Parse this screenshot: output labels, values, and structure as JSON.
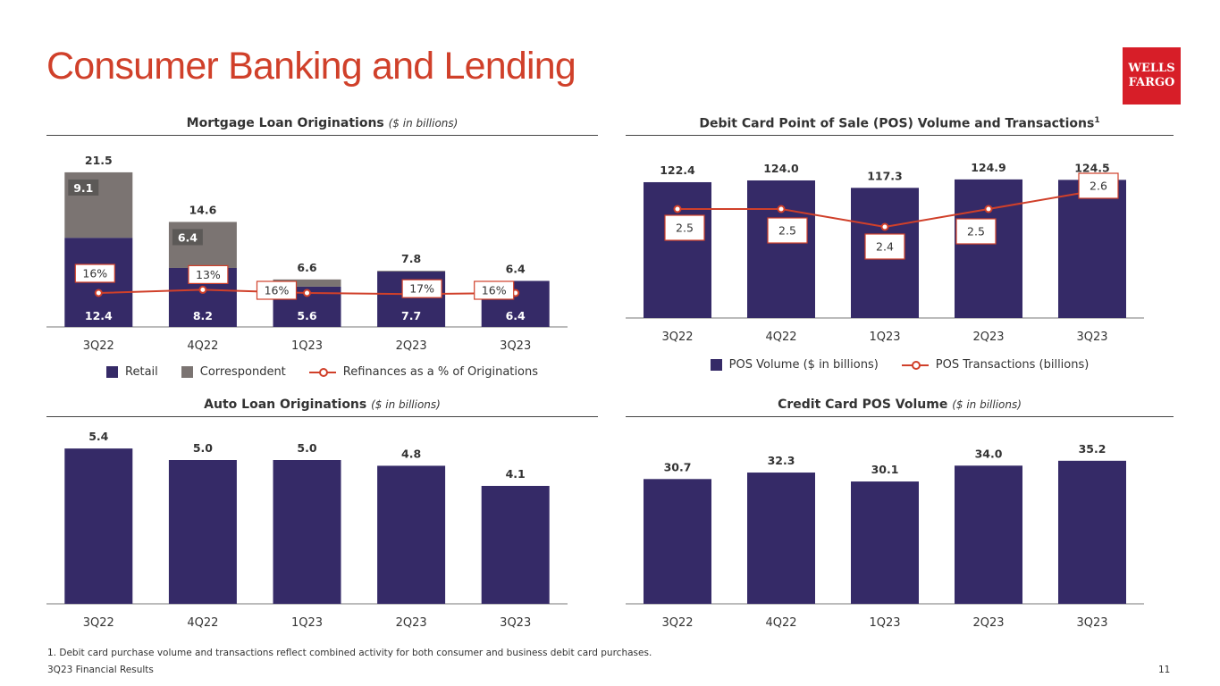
{
  "title": "Consumer Banking and Lending",
  "logo": {
    "line1": "WELLS",
    "line2": "FARGO",
    "color": "#d71e28"
  },
  "colors": {
    "navy": "#352a67",
    "gray": "#7b7472",
    "red": "#d0402a"
  },
  "chart_data": [
    {
      "type": "bar",
      "title": "Mortgage Loan Originations",
      "subtitle": "($ in billions)",
      "categories": [
        "3Q22",
        "4Q22",
        "1Q23",
        "2Q23",
        "3Q23"
      ],
      "series": [
        {
          "name": "Retail",
          "values": [
            12.4,
            8.2,
            5.6,
            7.7,
            6.4
          ],
          "labels": [
            "12.4",
            "8.2",
            "5.6",
            "7.7",
            "6.4"
          ]
        },
        {
          "name": "Correspondent",
          "values": [
            9.1,
            6.4,
            1.0,
            0.1,
            0.0
          ],
          "labels": [
            "9.1",
            "6.4",
            "",
            "",
            ""
          ]
        }
      ],
      "totals": [
        "21.5",
        "14.6",
        "6.6",
        "7.8",
        "6.4"
      ],
      "line": {
        "name": "Refinances as a % of Originations",
        "values": [
          16,
          13,
          16,
          17,
          16
        ],
        "labels": [
          "16%",
          "13%",
          "16%",
          "17%",
          "16%"
        ]
      }
    },
    {
      "type": "bar",
      "title": "Debit Card Point of Sale (POS) Volume and Transactions",
      "footnote_ref": "1",
      "categories": [
        "3Q22",
        "4Q22",
        "1Q23",
        "2Q23",
        "3Q23"
      ],
      "series": [
        {
          "name": "POS Volume ($ in billions)",
          "values": [
            122.4,
            124.0,
            117.3,
            124.9,
            124.5
          ],
          "labels": [
            "122.4",
            "124.0",
            "117.3",
            "124.9",
            "124.5"
          ]
        }
      ],
      "line": {
        "name": "POS Transactions (billions)",
        "values": [
          2.5,
          2.5,
          2.4,
          2.5,
          2.6
        ],
        "labels": [
          "2.5",
          "2.5",
          "2.4",
          "2.5",
          "2.6"
        ]
      }
    },
    {
      "type": "bar",
      "title": "Auto Loan Originations",
      "subtitle": "($ in billions)",
      "categories": [
        "3Q22",
        "4Q22",
        "1Q23",
        "2Q23",
        "3Q23"
      ],
      "series": [
        {
          "name": "",
          "values": [
            5.4,
            5.0,
            5.0,
            4.8,
            4.1
          ],
          "labels": [
            "5.4",
            "5.0",
            "5.0",
            "4.8",
            "4.1"
          ]
        }
      ]
    },
    {
      "type": "bar",
      "title": "Credit Card POS Volume",
      "subtitle": "($ in billions)",
      "categories": [
        "3Q22",
        "4Q22",
        "1Q23",
        "2Q23",
        "3Q23"
      ],
      "series": [
        {
          "name": "",
          "values": [
            30.7,
            32.3,
            30.1,
            34.0,
            35.2
          ],
          "labels": [
            "30.7",
            "32.3",
            "30.1",
            "34.0",
            "35.2"
          ]
        }
      ]
    }
  ],
  "footnote": "1. Debit card purchase volume and transactions reflect combined activity for both consumer and business debit card purchases.",
  "footer": {
    "left": "3Q23 Financial Results",
    "page": "11"
  }
}
